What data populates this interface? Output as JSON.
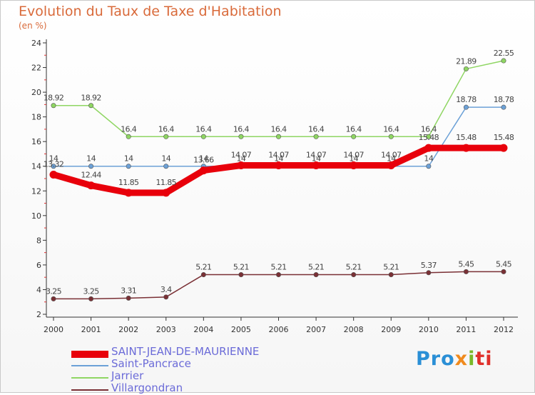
{
  "chart_data": {
    "type": "line",
    "title": "Evolution du Taux de Taxe d'Habitation",
    "subtitle": "(en %)",
    "x": [
      "2000",
      "2001",
      "2002",
      "2003",
      "2004",
      "2005",
      "2006",
      "2007",
      "2008",
      "2009",
      "2010",
      "2011",
      "2012"
    ],
    "ylim": [
      2,
      24
    ],
    "yticks": [
      2,
      4,
      6,
      8,
      10,
      12,
      14,
      16,
      18,
      20,
      22,
      24
    ],
    "grid": false,
    "legend_position": "bottom-left",
    "series": [
      {
        "name": "SAINT-JEAN-DE-MAURIENNE",
        "color": "#e8000b",
        "values": [
          13.32,
          12.44,
          11.85,
          11.85,
          13.66,
          14.07,
          14.07,
          14.07,
          14.07,
          14.07,
          15.48,
          15.48,
          15.48
        ],
        "labels": [
          "13.32",
          "12.44",
          "11.85",
          "11.85",
          "13.66",
          "14.07",
          "14.07",
          "14.07",
          "14.07",
          "14.07",
          "15.48",
          "15.48",
          "15.48"
        ]
      },
      {
        "name": "Saint-Pancrace",
        "color": "#6ca1d7",
        "values": [
          14,
          14,
          14,
          14,
          14,
          14,
          14,
          14,
          14,
          14,
          14,
          18.78,
          18.78
        ],
        "labels": [
          "14",
          "14",
          "14",
          "14",
          "14",
          "14",
          "14",
          "14",
          "14",
          "14",
          "14",
          "18.78",
          "18.78"
        ]
      },
      {
        "name": "Jarrier",
        "color": "#8fd663",
        "values": [
          18.92,
          18.92,
          16.4,
          16.4,
          16.4,
          16.4,
          16.4,
          16.4,
          16.4,
          16.4,
          16.4,
          21.89,
          22.55
        ],
        "labels": [
          "18.92",
          "18.92",
          "16.4",
          "16.4",
          "16.4",
          "16.4",
          "16.4",
          "16.4",
          "16.4",
          "16.4",
          "16.4",
          "21.89",
          "22.55"
        ]
      },
      {
        "name": "Villargondran",
        "color": "#7a3035",
        "values": [
          3.25,
          3.25,
          3.31,
          3.4,
          5.21,
          5.21,
          5.21,
          5.21,
          5.21,
          5.21,
          5.37,
          5.45,
          5.45
        ],
        "labels": [
          "3.25",
          "3.25",
          "3.31",
          "3.4",
          "5.21",
          "5.21",
          "5.21",
          "5.21",
          "5.21",
          "5.21",
          "5.37",
          "5.45",
          "5.45"
        ]
      }
    ]
  },
  "legend": {
    "items": [
      {
        "label": "SAINT-JEAN-DE-MAURIENNE",
        "color": "#e8000b",
        "text_color": "#6b6bd8"
      },
      {
        "label": "Saint-Pancrace",
        "color": "#6ca1d7",
        "text_color": "#6b6bd8"
      },
      {
        "label": "Jarrier",
        "color": "#8fd663",
        "text_color": "#6b6bd8"
      },
      {
        "label": "Villargondran",
        "color": "#7a3035",
        "text_color": "#6b6bd8"
      }
    ]
  },
  "logo": {
    "text": "Proxiti",
    "parts": [
      "Pro",
      "x",
      "i",
      "ti"
    ]
  }
}
